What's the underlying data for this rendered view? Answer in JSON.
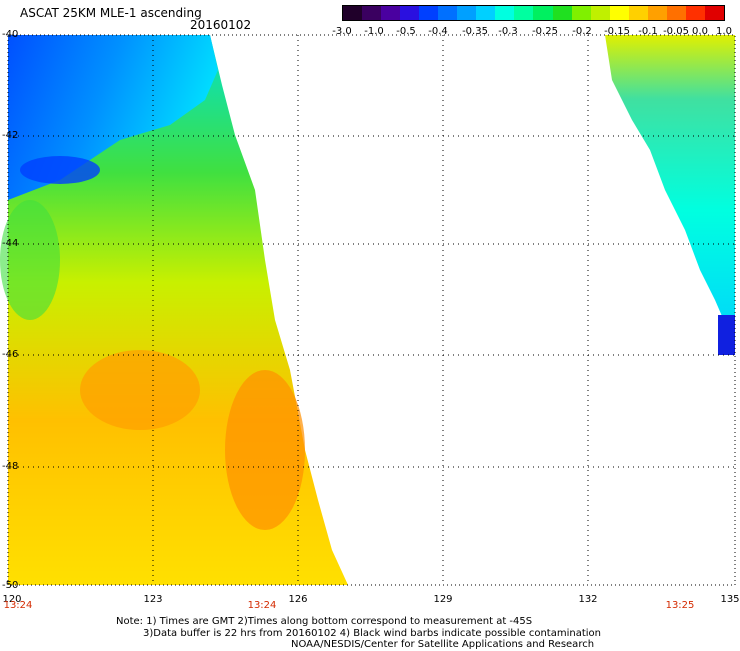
{
  "header": {
    "title": "ASCAT 25KM MLE-1 ascending",
    "date": "20160102"
  },
  "colorbar": {
    "labels": [
      "-3.0",
      "-1.0",
      "-0.5",
      "-0.4",
      "-0.35",
      "-0.3",
      "-0.25",
      "-0.2",
      "-0.15",
      "-0.1",
      "-0.05",
      "0.0",
      "1.0"
    ],
    "colors": [
      "#20002a",
      "#3a0060",
      "#4a00a0",
      "#2a10e0",
      "#0040ff",
      "#0070ff",
      "#00a0ff",
      "#00d0ff",
      "#00ffe0",
      "#00ffa0",
      "#00f060",
      "#20e020",
      "#80f000",
      "#c0f000",
      "#ffff00",
      "#ffd000",
      "#ffa000",
      "#ff7000",
      "#ff3000",
      "#e00000"
    ]
  },
  "map": {
    "lat_labels": [
      "-40",
      "-42",
      "-44",
      "-46",
      "-48",
      "-50"
    ],
    "lon_labels": [
      "120",
      "123",
      "126",
      "129",
      "132",
      "135"
    ],
    "time_labels": [
      "13:24",
      "13:24",
      "13:25"
    ]
  },
  "notes": {
    "line1": "Note: 1) Times are GMT 2)Times along bottom correspond to measurement at -45S",
    "line2": "3)Data buffer is 22 hrs from 20160102 4) Black wind barbs indicate possible contamination",
    "line3": "NOAA/NESDIS/Center for Satellite Applications and Research"
  }
}
